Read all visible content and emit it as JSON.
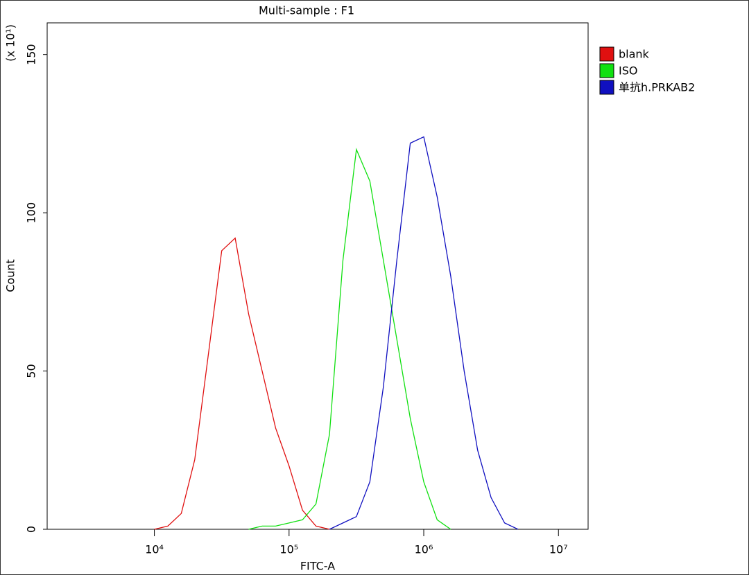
{
  "chart_data": {
    "type": "line",
    "title": "Multi-sample : F1",
    "x_label": "FITC-A",
    "y_label": "Count",
    "y_multiplier": "(x 10¹)",
    "xscale": "log",
    "xlim": [
      1600,
      16600000
    ],
    "ylim": [
      0,
      160
    ],
    "xticks": [
      {
        "value": 10000,
        "label": "10⁴"
      },
      {
        "value": 100000,
        "label": "10⁵"
      },
      {
        "value": 1000000,
        "label": "10⁶"
      },
      {
        "value": 10000000,
        "label": "10⁷"
      }
    ],
    "yticks": [
      0,
      50,
      100,
      150
    ],
    "legend": "right",
    "x": [
      10000,
      12589,
      15849,
      19953,
      25119,
      31623,
      39811,
      50119,
      63096,
      79433,
      100000,
      125893,
      158489,
      199526,
      251189,
      316228,
      398107,
      501187,
      630957,
      794328,
      1000000,
      1258925,
      1584893,
      1995262,
      2511886,
      3162278,
      3981072,
      5011872
    ],
    "series": [
      {
        "name": "blank",
        "color": "#e01010",
        "values": [
          0,
          1,
          5,
          22,
          55,
          88,
          92,
          68,
          50,
          32,
          20,
          6,
          1,
          0,
          null,
          null,
          null,
          null,
          null,
          null,
          null,
          null,
          null,
          null,
          null,
          null,
          null,
          null
        ]
      },
      {
        "name": "ISO",
        "color": "#10e010",
        "values": [
          null,
          null,
          null,
          null,
          null,
          null,
          null,
          0,
          1,
          1,
          2,
          3,
          8,
          30,
          85,
          120,
          110,
          85,
          60,
          35,
          15,
          3,
          0,
          null,
          null,
          null,
          null,
          null
        ]
      },
      {
        "name": "单抗h.PRKAB2",
        "color": "#1010c0",
        "values": [
          null,
          null,
          null,
          null,
          null,
          null,
          null,
          null,
          null,
          null,
          null,
          null,
          null,
          0,
          2,
          4,
          15,
          45,
          85,
          122,
          124,
          105,
          80,
          50,
          25,
          10,
          2,
          0
        ]
      }
    ]
  }
}
